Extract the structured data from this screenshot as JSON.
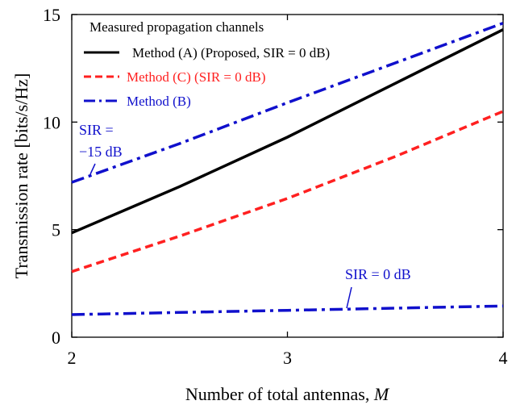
{
  "chart_data": {
    "type": "line",
    "xlabel": "Number of total antennas, ",
    "xlabel_italic": "M",
    "ylabel": "Transmission rate [bits/s/Hz]",
    "xlim": [
      2,
      4
    ],
    "ylim": [
      0,
      15
    ],
    "xticks": [
      2,
      3,
      4
    ],
    "yticks": [
      0,
      5,
      10,
      15
    ],
    "grid": false,
    "legend": {
      "title": "Measured propagation channels",
      "placement": "top-left",
      "entries": [
        {
          "label": "Method (A) (Proposed, SIR = 0 dB)",
          "color": "#000000",
          "style": "solid"
        },
        {
          "label": "Method (C) (SIR = 0 dB)",
          "color": "#ff2020",
          "style": "dashed"
        },
        {
          "label": "Method (B)",
          "color": "#1010cc",
          "style": "dashdot"
        }
      ]
    },
    "series": [
      {
        "color": "#000000",
        "style": "solid",
        "x": [
          2,
          2.5,
          3,
          3.5,
          4
        ],
        "y": [
          4.85,
          7.0,
          9.3,
          11.8,
          14.3
        ]
      },
      {
        "color": "#ff2020",
        "style": "dashed",
        "x": [
          2,
          2.5,
          3,
          3.5,
          4
        ],
        "y": [
          3.05,
          4.7,
          6.45,
          8.4,
          10.5
        ]
      },
      {
        "color": "#1010cc",
        "style": "dashdot",
        "x": [
          2,
          2.5,
          3,
          3.5,
          4
        ],
        "y": [
          7.2,
          9.0,
          10.9,
          12.75,
          14.6
        ]
      },
      {
        "color": "#1010cc",
        "style": "dashdot",
        "x": [
          2,
          2.5,
          3,
          3.5,
          4
        ],
        "y": [
          1.05,
          1.15,
          1.25,
          1.35,
          1.45
        ]
      }
    ],
    "annotations": [
      {
        "lines": [
          "SIR =",
          "−15 dB"
        ],
        "color": "#1010cc",
        "points_to": [
          2.1,
          7.5
        ]
      },
      {
        "lines": [
          "SIR = 0 dB"
        ],
        "color": "#1010cc",
        "points_to": [
          3.28,
          1.32
        ]
      }
    ]
  }
}
